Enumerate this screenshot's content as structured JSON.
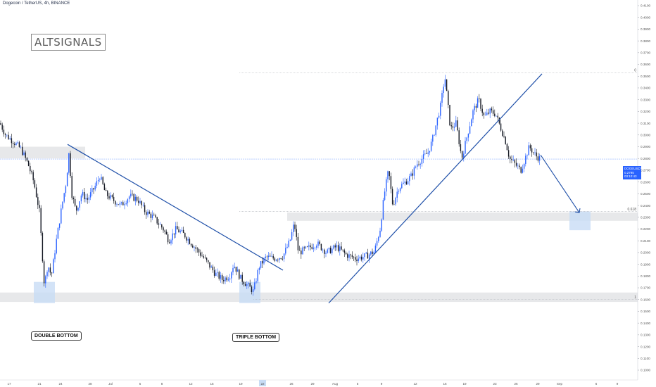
{
  "header": {
    "title": "Dogecoin / TetherUS, 4h, BINANCE"
  },
  "logo": {
    "text": "ALTSIGNALS"
  },
  "annotations": {
    "double_bottom": "DOUBLE BOTTOM",
    "triple_bottom": "TRIPLE BOTTOM",
    "fib_0": "0",
    "fib_0618": "0.618",
    "fib_1": "1"
  },
  "price_badge": {
    "symbol": "DOGEUSDT",
    "price": "0.2795",
    "countdown": "03:10:43"
  },
  "colors": {
    "bull": "#2962ff",
    "bear": "#131722",
    "trendline": "#1e4fa8",
    "zone": "#e3e4e6",
    "target_box": "#c8dcf5",
    "last_price_line": "#90b4ff"
  },
  "chart_data": {
    "type": "candlestick",
    "symbol": "DOGEUSDT",
    "timeframe": "4h",
    "exchange": "BINANCE",
    "y_axis": {
      "min": 0.09,
      "max": 0.41,
      "ticks": [
        "0.4100",
        "0.4000",
        "0.3900",
        "0.3800",
        "0.3700",
        "0.3600",
        "0.3500",
        "0.3400",
        "0.3300",
        "0.3200",
        "0.3100",
        "0.3000",
        "0.2900",
        "0.2800",
        "0.2700",
        "0.2600",
        "0.2500",
        "0.2400",
        "0.2300",
        "0.2200",
        "0.2100",
        "0.2000",
        "0.1900",
        "0.1800",
        "0.1700",
        "0.1600",
        "0.1500",
        "0.1400",
        "0.1300",
        "0.1200",
        "0.1100",
        "0.1000"
      ]
    },
    "x_axis": {
      "ticks": [
        "17",
        "21",
        "24",
        "28",
        "Jul",
        "5",
        "8",
        "12",
        "15",
        "19",
        "22",
        "26",
        "29",
        "Aug",
        "5",
        "9",
        "12",
        "16",
        "19",
        "23",
        "26",
        "29",
        "Sep",
        "6",
        "9"
      ],
      "highlighted_tick": "22"
    },
    "price_path": [
      [
        0,
        0.31
      ],
      [
        8,
        0.3
      ],
      [
        18,
        0.295
      ],
      [
        30,
        0.288
      ],
      [
        40,
        0.275
      ],
      [
        48,
        0.26
      ],
      [
        56,
        0.235
      ],
      [
        63,
        0.172
      ],
      [
        68,
        0.19
      ],
      [
        73,
        0.18
      ],
      [
        80,
        0.21
      ],
      [
        88,
        0.24
      ],
      [
        94,
        0.26
      ],
      [
        98,
        0.285
      ],
      [
        102,
        0.25
      ],
      [
        108,
        0.235
      ],
      [
        116,
        0.25
      ],
      [
        124,
        0.245
      ],
      [
        134,
        0.255
      ],
      [
        142,
        0.265
      ],
      [
        150,
        0.25
      ],
      [
        160,
        0.245
      ],
      [
        172,
        0.24
      ],
      [
        184,
        0.248
      ],
      [
        196,
        0.245
      ],
      [
        206,
        0.235
      ],
      [
        218,
        0.23
      ],
      [
        232,
        0.22
      ],
      [
        240,
        0.21
      ],
      [
        250,
        0.22
      ],
      [
        262,
        0.215
      ],
      [
        276,
        0.205
      ],
      [
        290,
        0.195
      ],
      [
        306,
        0.182
      ],
      [
        316,
        0.177
      ],
      [
        326,
        0.18
      ],
      [
        332,
        0.19
      ],
      [
        342,
        0.178
      ],
      [
        352,
        0.172
      ],
      [
        360,
        0.167
      ],
      [
        368,
        0.188
      ],
      [
        378,
        0.196
      ],
      [
        390,
        0.195
      ],
      [
        402,
        0.197
      ],
      [
        412,
        0.21
      ],
      [
        418,
        0.225
      ],
      [
        424,
        0.2
      ],
      [
        436,
        0.203
      ],
      [
        450,
        0.208
      ],
      [
        464,
        0.2
      ],
      [
        478,
        0.205
      ],
      [
        492,
        0.198
      ],
      [
        506,
        0.195
      ],
      [
        520,
        0.197
      ],
      [
        532,
        0.201
      ],
      [
        540,
        0.22
      ],
      [
        546,
        0.25
      ],
      [
        552,
        0.27
      ],
      [
        558,
        0.24
      ],
      [
        566,
        0.255
      ],
      [
        576,
        0.26
      ],
      [
        584,
        0.265
      ],
      [
        592,
        0.275
      ],
      [
        600,
        0.28
      ],
      [
        608,
        0.285
      ],
      [
        614,
        0.295
      ],
      [
        620,
        0.31
      ],
      [
        626,
        0.325
      ],
      [
        632,
        0.35
      ],
      [
        640,
        0.305
      ],
      [
        648,
        0.31
      ],
      [
        656,
        0.28
      ],
      [
        664,
        0.3
      ],
      [
        672,
        0.32
      ],
      [
        680,
        0.33
      ],
      [
        688,
        0.315
      ],
      [
        696,
        0.32
      ],
      [
        704,
        0.318
      ],
      [
        712,
        0.305
      ],
      [
        718,
        0.295
      ],
      [
        724,
        0.28
      ],
      [
        732,
        0.275
      ],
      [
        740,
        0.27
      ],
      [
        746,
        0.28
      ],
      [
        752,
        0.29
      ],
      [
        758,
        0.285
      ],
      [
        762,
        0.282
      ],
      [
        768,
        0.2795
      ]
    ],
    "trendlines": [
      {
        "name": "descending resistance",
        "from": [
          96,
          0.292
        ],
        "to": [
          402,
          0.185
        ]
      },
      {
        "name": "ascending support",
        "from": [
          467,
          0.157
        ],
        "to": [
          770,
          0.352
        ]
      }
    ],
    "projection": {
      "from": [
        768,
        0.283
      ],
      "to": [
        823,
        0.234
      ]
    },
    "zones": [
      {
        "name": "resistance zone",
        "x": [
          0,
          121
        ],
        "y": [
          0.28,
          0.29
        ]
      },
      {
        "name": "support zone",
        "x": [
          0,
          906
        ],
        "y": [
          0.158,
          0.166
        ]
      },
      {
        "name": "0.618 fib zone",
        "x": [
          408,
          906
        ],
        "y": [
          0.227,
          0.234
        ]
      }
    ],
    "highlight_boxes": [
      {
        "name": "double bottom area",
        "x": [
          48,
          78
        ],
        "y": [
          0.157,
          0.175
        ]
      },
      {
        "name": "triple bottom area",
        "x": [
          340,
          370
        ],
        "y": [
          0.157,
          0.175
        ]
      },
      {
        "name": "target box",
        "x": [
          809,
          839
        ],
        "y": [
          0.219,
          0.235
        ]
      }
    ],
    "fib_levels": [
      {
        "label": "0",
        "value": 0.353
      },
      {
        "label": "0.618",
        "value": 0.235
      },
      {
        "label": "1",
        "value": 0.16
      }
    ],
    "last_price": 0.2795
  }
}
